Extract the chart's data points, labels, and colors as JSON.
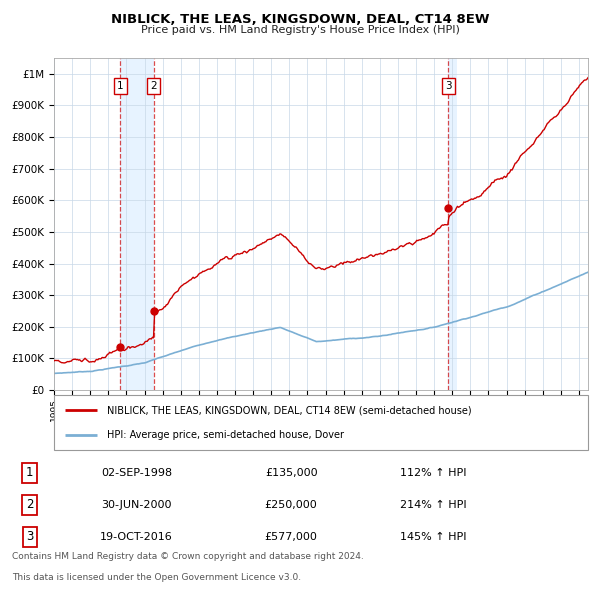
{
  "title": "NIBLICK, THE LEAS, KINGSDOWN, DEAL, CT14 8EW",
  "subtitle": "Price paid vs. HM Land Registry's House Price Index (HPI)",
  "hpi_label": "HPI: Average price, semi-detached house, Dover",
  "property_label": "NIBLICK, THE LEAS, KINGSDOWN, DEAL, CT14 8EW (semi-detached house)",
  "red_color": "#cc0000",
  "blue_color": "#7bafd4",
  "shade_color": "#ddeeff",
  "transactions": [
    {
      "num": 1,
      "date": "02-SEP-1998",
      "price": 135000,
      "year": 1998.67,
      "pct": "112%",
      "dir": "↑"
    },
    {
      "num": 2,
      "date": "30-JUN-2000",
      "price": 250000,
      "year": 2000.5,
      "pct": "214%",
      "dir": "↑"
    },
    {
      "num": 3,
      "date": "19-OCT-2016",
      "price": 577000,
      "year": 2016.79,
      "pct": "145%",
      "dir": "↑"
    }
  ],
  "ylim": [
    0,
    1050000
  ],
  "xlim_start": 1995.0,
  "xlim_end": 2024.5,
  "yticks": [
    0,
    100000,
    200000,
    300000,
    400000,
    500000,
    600000,
    700000,
    800000,
    900000,
    1000000
  ],
  "ytick_labels": [
    "£0",
    "£100K",
    "£200K",
    "£300K",
    "£400K",
    "£500K",
    "£600K",
    "£700K",
    "£800K",
    "£900K",
    "£1M"
  ],
  "footer_line1": "Contains HM Land Registry data © Crown copyright and database right 2024.",
  "footer_line2": "This data is licensed under the Open Government Licence v3.0."
}
